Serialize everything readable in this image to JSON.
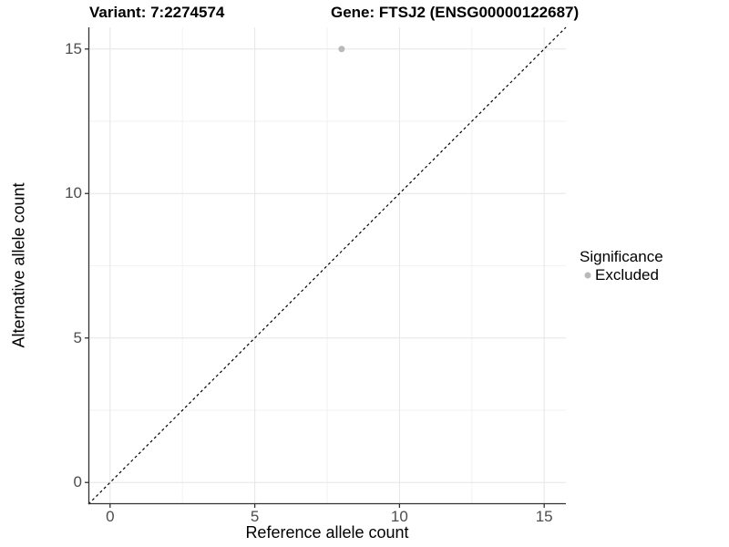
{
  "chart_data": {
    "type": "scatter",
    "title_left": "Variant: 7:2274574",
    "title_right": "Gene: FTSJ2 (ENSG00000122687)",
    "xlabel": "Reference allele count",
    "ylabel": "Alternative allele count",
    "xlim": [
      -0.75,
      15.75
    ],
    "ylim": [
      -0.75,
      15.75
    ],
    "x_major_ticks": [
      0,
      5,
      10,
      15
    ],
    "y_major_ticks": [
      0,
      5,
      10,
      15
    ],
    "x_minor_ticks": [
      2.5,
      7.5,
      12.5
    ],
    "y_minor_ticks": [
      2.5,
      7.5,
      12.5
    ],
    "grid": true,
    "identity_line": {
      "style": "dashed",
      "color": "#000000",
      "from": [
        -0.75,
        -0.75
      ],
      "to": [
        15.75,
        15.75
      ]
    },
    "series": [
      {
        "name": "Excluded",
        "color": "#b9b9b9",
        "points": [
          {
            "x": 8,
            "y": 15
          }
        ]
      }
    ],
    "legend": {
      "title": "Significance",
      "position": "right",
      "entries": [
        {
          "label": "Excluded",
          "color": "#b9b9b9",
          "marker": "circle"
        }
      ]
    },
    "colors": {
      "axis_line": "#333333",
      "tick_mark": "#333333",
      "tick_label": "#4d4d4d",
      "grid_major": "#e5e5e5",
      "grid_minor": "#f2f2f2",
      "background": "#ffffff"
    }
  }
}
